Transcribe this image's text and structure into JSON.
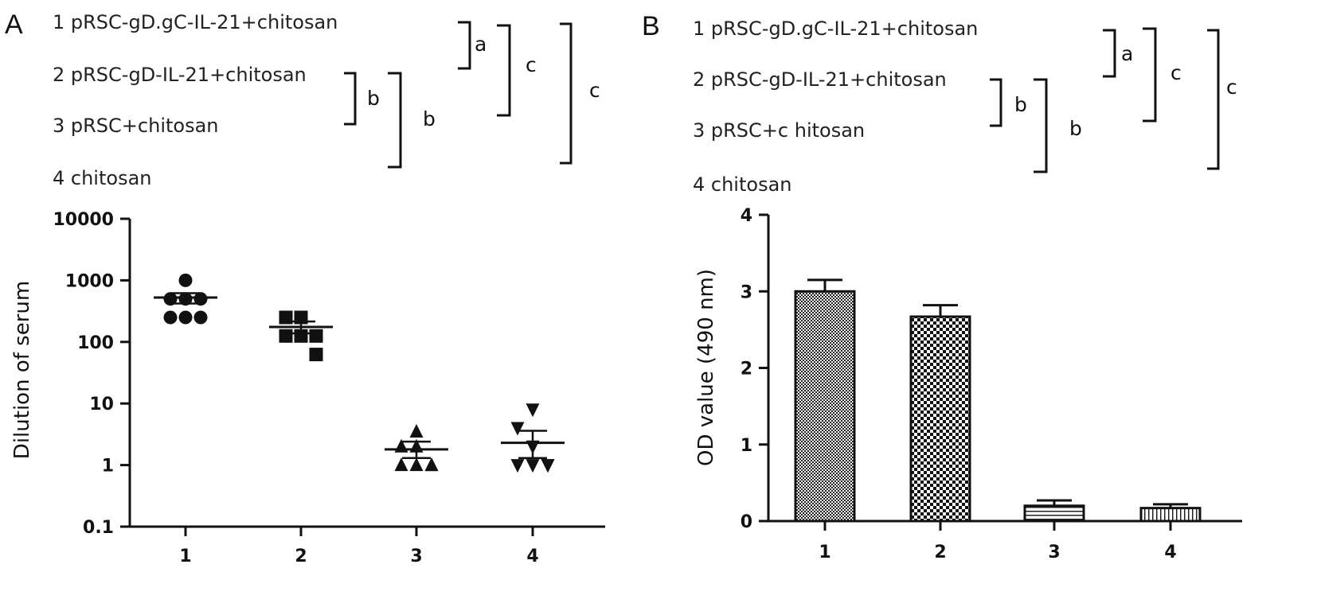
{
  "panels": [
    {
      "letter": "A",
      "legend": [
        "1 pRSC-gD.gC-IL-21+chitosan",
        "2 pRSC-gD-IL-21+chitosan",
        "3 pRSC+chitosan",
        "4 chitosan"
      ],
      "significance": [
        {
          "label": "a",
          "groups": [
            1,
            2
          ]
        },
        {
          "label": "b",
          "groups": [
            2,
            3
          ]
        },
        {
          "label": "b",
          "groups": [
            2,
            4
          ]
        },
        {
          "label": "c",
          "groups": [
            1,
            3
          ]
        },
        {
          "label": "c",
          "groups": [
            1,
            4
          ]
        }
      ]
    },
    {
      "letter": "B",
      "legend": [
        "1 pRSC-gD.gC-IL-21+chitosan",
        "2 pRSC-gD-IL-21+chitosan",
        "3 pRSC+c hitosan",
        "4 chitosan"
      ],
      "significance": [
        {
          "label": "a",
          "groups": [
            1,
            2
          ]
        },
        {
          "label": "b",
          "groups": [
            2,
            3
          ]
        },
        {
          "label": "b",
          "groups": [
            2,
            4
          ]
        },
        {
          "label": "c",
          "groups": [
            1,
            3
          ]
        },
        {
          "label": "c",
          "groups": [
            1,
            4
          ]
        }
      ]
    }
  ],
  "chart_data": [
    {
      "type": "scatter",
      "panel": "A",
      "title": "",
      "xlabel": "",
      "ylabel": "Dilution of serum",
      "yscale": "log",
      "ylim": [
        0.1,
        10000
      ],
      "yticks": [
        "10000",
        "1000",
        "100",
        "10",
        "1",
        "0.1"
      ],
      "categories": [
        "1",
        "2",
        "3",
        "4"
      ],
      "series": [
        {
          "category": "1",
          "marker": "circle",
          "points": [
            1000,
            500,
            500,
            500,
            250,
            250,
            250
          ],
          "mean": 525,
          "sem_upper": 620,
          "sem_lower": 420
        },
        {
          "category": "2",
          "marker": "square",
          "points": [
            250,
            250,
            250,
            125,
            125,
            125,
            62.5
          ],
          "mean": 175,
          "sem_upper": 215,
          "sem_lower": 138
        },
        {
          "category": "3",
          "marker": "triangle-up",
          "points": [
            3.5,
            2,
            2,
            1,
            1,
            1,
            1
          ],
          "mean": 1.8,
          "sem_upper": 2.4,
          "sem_lower": 1.3
        },
        {
          "category": "4",
          "marker": "triangle-down",
          "points": [
            8,
            4,
            2,
            1,
            1,
            1,
            1
          ],
          "mean": 2.3,
          "sem_upper": 3.6,
          "sem_lower": 1.3
        }
      ]
    },
    {
      "type": "bar",
      "panel": "B",
      "title": "",
      "xlabel": "",
      "ylabel": "OD value (490 nm)",
      "ylim": [
        0,
        4
      ],
      "yticks": [
        "0",
        "1",
        "2",
        "3",
        "4"
      ],
      "categories": [
        "1",
        "2",
        "3",
        "4"
      ],
      "values": [
        3.0,
        2.67,
        0.2,
        0.17
      ],
      "errors": [
        0.15,
        0.15,
        0.07,
        0.05
      ]
    }
  ]
}
